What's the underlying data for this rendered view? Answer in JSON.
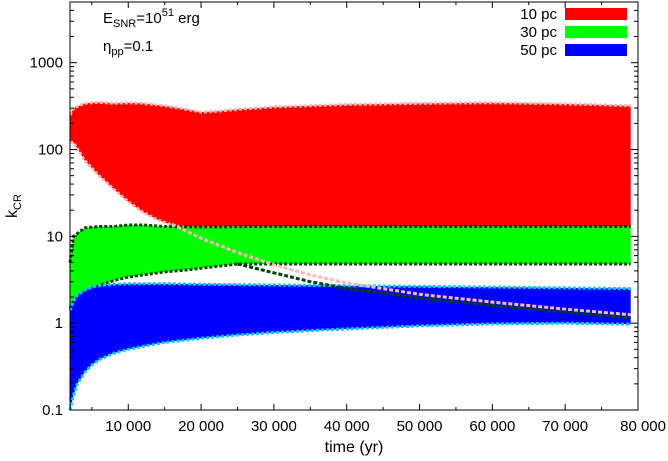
{
  "chart_data": {
    "type": "area",
    "xlabel": "time (yr)",
    "ylabel": "k",
    "ylabel_sub": "CR",
    "xlim": [
      2000,
      80000
    ],
    "ylim": [
      0.1,
      5000
    ],
    "yscale": "log",
    "grid": false,
    "legend_position": "top-right",
    "x_ticks": [
      {
        "value": 10000,
        "label": "10 000"
      },
      {
        "value": 20000,
        "label": "20 000"
      },
      {
        "value": 30000,
        "label": "30 000"
      },
      {
        "value": 40000,
        "label": "40 000"
      },
      {
        "value": 50000,
        "label": "50 000"
      },
      {
        "value": 60000,
        "label": "60 000"
      },
      {
        "value": 70000,
        "label": "70 000"
      },
      {
        "value": 80000,
        "label": "80 000"
      }
    ],
    "y_ticks": [
      {
        "value": 0.1,
        "label": "0.1"
      },
      {
        "value": 1,
        "label": "1"
      },
      {
        "value": 10,
        "label": "10"
      },
      {
        "value": 100,
        "label": "100"
      },
      {
        "value": 1000,
        "label": "1000"
      }
    ],
    "annotations": [
      {
        "main": "E",
        "sub": "SNR",
        "rest": "=10",
        "sup": "51",
        "tail": " erg"
      },
      {
        "main": "η",
        "sub": "pp",
        "rest": "=0.1",
        "sup": "",
        "tail": ""
      }
    ],
    "series": [
      {
        "name": "10 pc",
        "color": "#ff0000",
        "edge_color": "#ffb6b6",
        "x": [
          2000,
          2500,
          4000,
          6000,
          8000,
          10000,
          12000,
          15000,
          18000,
          20000,
          22000,
          25000,
          30000,
          40000,
          50000,
          60000,
          70000,
          79000
        ],
        "upper": [
          250,
          300,
          340,
          350,
          340,
          345,
          340,
          320,
          290,
          270,
          275,
          290,
          310,
          330,
          340,
          345,
          335,
          320
        ],
        "x_lower": [
          2000,
          2500,
          4000,
          6000,
          8000,
          10000,
          12000,
          14000,
          16000,
          18000,
          20000,
          25000,
          30000,
          40000,
          50000,
          60000,
          70000,
          79000
        ],
        "lower": [
          120,
          120,
          75,
          50,
          35,
          25,
          19,
          15.5,
          13.5,
          12.5,
          12.5,
          12.5,
          12.5,
          12.5,
          12.5,
          12.5,
          12.5,
          12.5
        ],
        "tail_x": [
          16000,
          18000,
          20000,
          25000,
          30000,
          35000,
          40000,
          50000,
          60000,
          70000,
          79000
        ],
        "tail_y": [
          13.8,
          11.5,
          9.5,
          6.5,
          4.7,
          3.6,
          2.9,
          2.15,
          1.75,
          1.45,
          1.25
        ]
      },
      {
        "name": "30 pc",
        "color": "#00ff00",
        "edge_color": "#004400",
        "x": [
          2000,
          2500,
          4000,
          6000,
          8000,
          10000,
          12000,
          15000,
          20000,
          30000,
          40000,
          50000,
          60000,
          70000,
          79000
        ],
        "upper": [
          5,
          10,
          12.5,
          13,
          13,
          13.5,
          13.5,
          13,
          12.8,
          13,
          13,
          13,
          13,
          13,
          13
        ],
        "x_lower": [
          2000,
          2500,
          4000,
          6000,
          8000,
          10000,
          12000,
          15000,
          18000,
          20000,
          22000,
          25000,
          30000,
          40000,
          50000,
          60000,
          70000,
          79000
        ],
        "lower": [
          1.5,
          1.8,
          2.3,
          2.7,
          3.1,
          3.4,
          3.6,
          3.9,
          4.1,
          4.3,
          4.5,
          4.8,
          4.8,
          4.8,
          4.8,
          4.8,
          4.8,
          4.8
        ],
        "tail_x": [
          25000,
          30000,
          35000,
          40000,
          50000,
          60000,
          70000,
          79000
        ],
        "tail_y": [
          4.8,
          3.8,
          3.0,
          2.5,
          1.95,
          1.6,
          1.35,
          1.15
        ]
      },
      {
        "name": "50 pc",
        "color": "#0000ff",
        "edge_color": "#00ccff",
        "x": [
          2000,
          2500,
          3000,
          4000,
          5000,
          6000,
          8000,
          10000,
          15000,
          20000,
          30000,
          40000,
          50000,
          60000,
          70000,
          79000
        ],
        "upper": [
          1.4,
          1.8,
          2.1,
          2.4,
          2.6,
          2.7,
          2.8,
          2.85,
          2.85,
          2.8,
          2.75,
          2.7,
          2.65,
          2.6,
          2.55,
          2.5
        ],
        "x_lower": [
          2000,
          2500,
          3000,
          4000,
          5000,
          6000,
          8000,
          10000,
          12000,
          15000,
          20000,
          25000,
          30000,
          40000,
          50000,
          60000,
          70000,
          79000
        ],
        "lower": [
          0.1,
          0.15,
          0.2,
          0.27,
          0.33,
          0.38,
          0.45,
          0.5,
          0.54,
          0.6,
          0.67,
          0.73,
          0.78,
          0.86,
          0.93,
          0.98,
          1.0,
          0.97
        ],
        "tail_x": [],
        "tail_y": []
      }
    ]
  }
}
